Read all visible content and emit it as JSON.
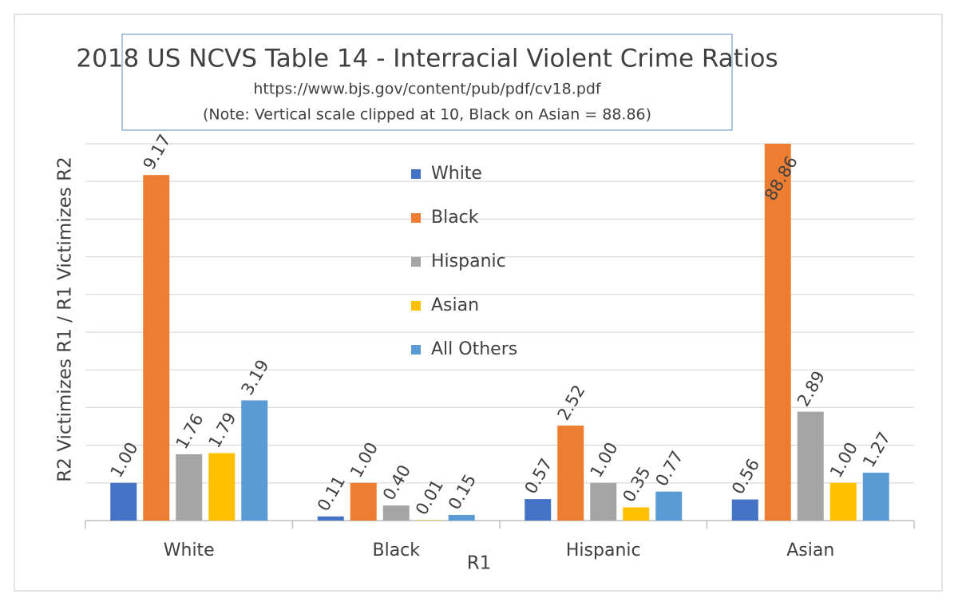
{
  "chart_data": {
    "type": "bar",
    "title": "2018 US NCVS Table 14 - Interracial Violent Crime Ratios",
    "subtitle": "https://www.bjs.gov/content/pub/pdf/cv18.pdf",
    "annotation": "(Note: Vertical scale clipped at 10, Black on Asian = 88.86)",
    "x_label": "R1",
    "y_label": "R2 Victimizes R1 / R1 Victimizes R2",
    "categories": [
      "White",
      "Black",
      "Hispanic",
      "Asian"
    ],
    "series": [
      {
        "name": "White",
        "color": "#4472c4",
        "values": [
          1.0,
          0.11,
          0.57,
          0.56
        ],
        "value_labels": [
          "1.00",
          "0.11",
          "0.57",
          "0.56"
        ]
      },
      {
        "name": "Black",
        "color": "#ed7d31",
        "values": [
          9.17,
          1.0,
          2.52,
          88.86
        ],
        "value_labels": [
          "9.17",
          "1.00",
          "2.52",
          "88.86"
        ]
      },
      {
        "name": "Hispanic",
        "color": "#a5a5a5",
        "values": [
          1.76,
          0.4,
          1.0,
          2.89
        ],
        "value_labels": [
          "1.76",
          "0.40",
          "1.00",
          "2.89"
        ]
      },
      {
        "name": "Asian",
        "color": "#ffc000",
        "values": [
          1.79,
          0.01,
          0.35,
          1.0
        ],
        "value_labels": [
          "1.79",
          "0.01",
          "0.35",
          "1.00"
        ]
      },
      {
        "name": "All Others",
        "color": "#5b9bd5",
        "values": [
          3.19,
          0.15,
          0.77,
          1.27
        ],
        "value_labels": [
          "3.19",
          "0.15",
          "0.77",
          "1.27"
        ]
      }
    ],
    "ylim": [
      0,
      10
    ],
    "yticks": [
      0,
      1,
      2,
      3,
      4,
      5,
      6,
      7,
      8,
      9,
      10
    ],
    "grid": true
  }
}
